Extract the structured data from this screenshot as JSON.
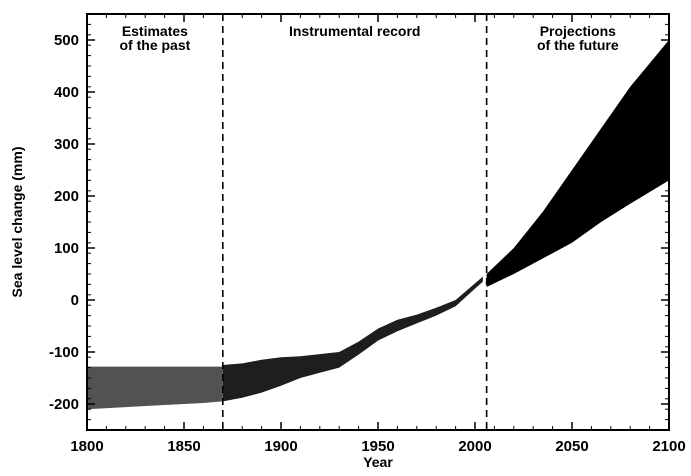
{
  "chart_data": {
    "type": "area",
    "title": "",
    "xlabel": "Year",
    "ylabel": "Sea level change (mm)",
    "xlim": [
      1800,
      2100
    ],
    "ylim": [
      -250,
      550
    ],
    "x_ticks": [
      1800,
      1850,
      1900,
      1950,
      2000,
      2050,
      2100
    ],
    "y_ticks": [
      -200,
      -100,
      0,
      100,
      200,
      300,
      400,
      500
    ],
    "grid": false,
    "era_dividers": [
      1870,
      2006
    ],
    "era_labels": [
      {
        "id": "past",
        "lines": [
          "Estimates",
          "of the past"
        ],
        "x_center": 1835
      },
      {
        "id": "instrumental",
        "lines": [
          "Instrumental record"
        ],
        "x_center": 1938
      },
      {
        "id": "future",
        "lines": [
          "Projections",
          "of the future"
        ],
        "x_center": 2053
      }
    ],
    "series": [
      {
        "id": "past",
        "color": "#3a3a3a",
        "x": [
          1800,
          1820,
          1840,
          1860,
          1870
        ],
        "upper": [
          -128,
          -128,
          -128,
          -128,
          -128
        ],
        "lower": [
          -210,
          -206,
          -202,
          -198,
          -195
        ]
      },
      {
        "id": "instrumental",
        "color": "#1e1e1e",
        "x": [
          1870,
          1880,
          1890,
          1900,
          1910,
          1920,
          1930,
          1940,
          1950,
          1960,
          1970,
          1980,
          1990,
          2000,
          2004
        ],
        "upper": [
          -125,
          -122,
          -115,
          -110,
          -108,
          -104,
          -100,
          -80,
          -55,
          -38,
          -28,
          -15,
          0,
          32,
          45
        ],
        "lower": [
          -195,
          -188,
          -178,
          -165,
          -150,
          -140,
          -130,
          -105,
          -78,
          -60,
          -45,
          -30,
          -12,
          22,
          35
        ]
      },
      {
        "id": "projections",
        "color": "#000000",
        "x": [
          2006,
          2020,
          2035,
          2050,
          2065,
          2080,
          2100
        ],
        "upper": [
          50,
          100,
          170,
          250,
          330,
          410,
          500
        ],
        "lower": [
          25,
          50,
          80,
          110,
          150,
          185,
          230
        ]
      }
    ]
  }
}
